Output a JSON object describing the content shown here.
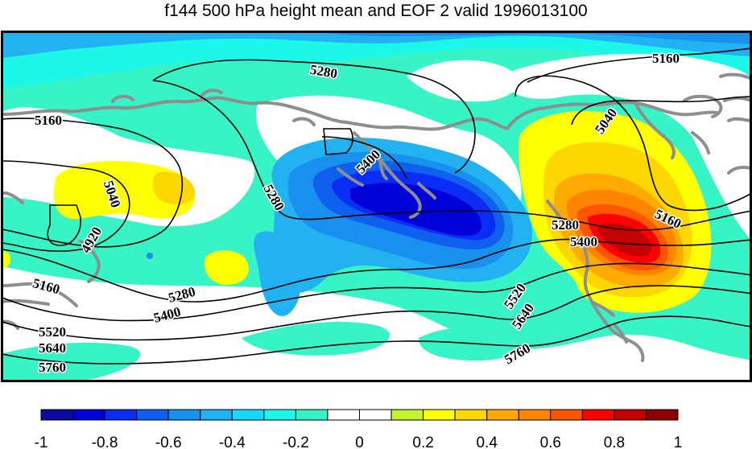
{
  "title": "f144 500 hPa height mean and EOF 2 valid 1996013100",
  "contour_labels": [
    "5280",
    "5160",
    "5160",
    "5040",
    "5040",
    "5400",
    "5280",
    "4920",
    "5280",
    "5160",
    "5400",
    "5160",
    "5280",
    "5400",
    "5520",
    "5640",
    "5760",
    "5520",
    "5640",
    "5760"
  ],
  "colorbar": {
    "ticks": [
      "-1",
      "-0.8",
      "-0.6",
      "-0.4",
      "-0.2",
      "0",
      "0.2",
      "0.4",
      "0.6",
      "0.8",
      "1"
    ],
    "colors": [
      "#0a0ca0",
      "#0000d8",
      "#0a2cf5",
      "#1060f0",
      "#1890ee",
      "#22b2f2",
      "#17d8ff",
      "#1cf7ea",
      "#36f4c6",
      "#ffffff",
      "#ffffff",
      "#c5f22f",
      "#ffff00",
      "#ffd700",
      "#ffaa00",
      "#ff8400",
      "#ff5400",
      "#ff0000",
      "#c60000",
      "#900000"
    ]
  },
  "colors": {
    "coastline": "#8e8e8e",
    "contour": "#000000",
    "frame": "#000000"
  }
}
